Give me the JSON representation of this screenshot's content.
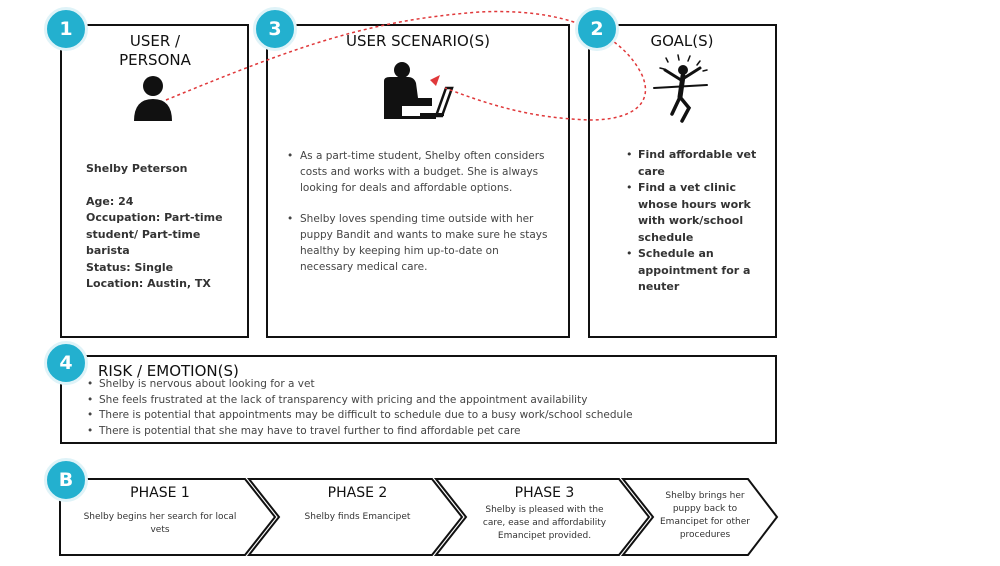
{
  "badges": {
    "user": "1",
    "goal": "2",
    "scenario": "3",
    "risk": "4",
    "phases": "B"
  },
  "persona": {
    "title_line1": "USER /",
    "title_line2": "PERSONA",
    "name": "Shelby Peterson",
    "age": "Age: 24",
    "occupation_line1": "Occupation: Part-time",
    "occupation_line2": "student/ Part-time",
    "occupation_line3": "barista",
    "status": "Status: Single",
    "location": "Location: Austin, TX"
  },
  "scenario": {
    "title": "USER SCENARIO(S)",
    "items": [
      "As a part-time student, Shelby often considers costs and works with a budget. She is always looking for deals and affordable options.",
      "Shelby loves spending time outside with her puppy Bandit and wants to make sure he stays healthy by keeping him up-to-date on necessary medical care."
    ]
  },
  "goals": {
    "title": "GOAL(S)",
    "items": [
      "Find affordable vet care",
      "Find a vet clinic whose hours work with work/school schedule",
      "Schedule an appointment for a neuter"
    ]
  },
  "risk": {
    "title": "RISK / EMOTION(S)",
    "items": [
      "Shelby is nervous about looking for a vet",
      "She feels frustrated at the lack of transparency with pricing and the appointment availability",
      "There is potential that appointments may be difficult to schedule due to a busy work/school schedule",
      "There is potential that she may have to travel further to find affordable pet care"
    ]
  },
  "phases": [
    {
      "title": "PHASE 1",
      "desc_lines": [
        "Shelby begins her search for local",
        "vets"
      ]
    },
    {
      "title": "PHASE 2",
      "desc_lines": [
        "Shelby finds Emancipet"
      ]
    },
    {
      "title": "PHASE 3",
      "desc_lines": [
        "Shelby is pleased with the",
        "care, ease and affordability",
        "Emancipet provided."
      ]
    },
    {
      "title": "",
      "desc_lines": [
        "Shelby brings her",
        "puppy back to",
        "Emancipet for other",
        "procedures"
      ]
    }
  ],
  "colors": {
    "badge": "#23b0cf",
    "dashed_connector": "#e0383a",
    "border": "#111111"
  },
  "icons": [
    "person-icon",
    "person-at-laptop-icon",
    "celebrating-person-icon",
    "red-arrow-icon"
  ]
}
